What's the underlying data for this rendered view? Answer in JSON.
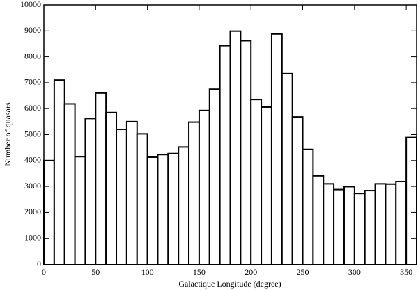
{
  "chart_data": {
    "type": "histogram",
    "x_label": "Galactique Longitude  (degree)",
    "y_label": "Number of quasars",
    "bins": [
      0,
      10,
      20,
      30,
      40,
      50,
      60,
      70,
      80,
      90,
      100,
      110,
      120,
      130,
      140,
      150,
      160,
      170,
      180,
      190,
      200,
      210,
      220,
      230,
      240,
      250,
      260,
      270,
      280,
      290,
      300,
      310,
      320,
      330,
      340,
      350,
      360
    ],
    "values": [
      4000,
      7100,
      6180,
      4150,
      5620,
      6600,
      5850,
      5200,
      5500,
      5030,
      4130,
      4230,
      4270,
      4520,
      5480,
      5930,
      6750,
      8430,
      8990,
      8620,
      6350,
      6060,
      8880,
      7350,
      5680,
      4430,
      3410,
      3100,
      2880,
      2990,
      2730,
      2840,
      3100,
      3090,
      3190,
      4890
    ],
    "color": "#ffffff",
    "edge_color": "#000000",
    "xlim": [
      0,
      360
    ],
    "xticks": [
      0,
      50,
      100,
      150,
      200,
      250,
      300,
      350
    ],
    "ylim": [
      0,
      10000
    ],
    "yticks": [
      0,
      1000,
      2000,
      3000,
      4000,
      5000,
      6000,
      7000,
      8000,
      9000,
      10000
    ],
    "grid": false
  }
}
